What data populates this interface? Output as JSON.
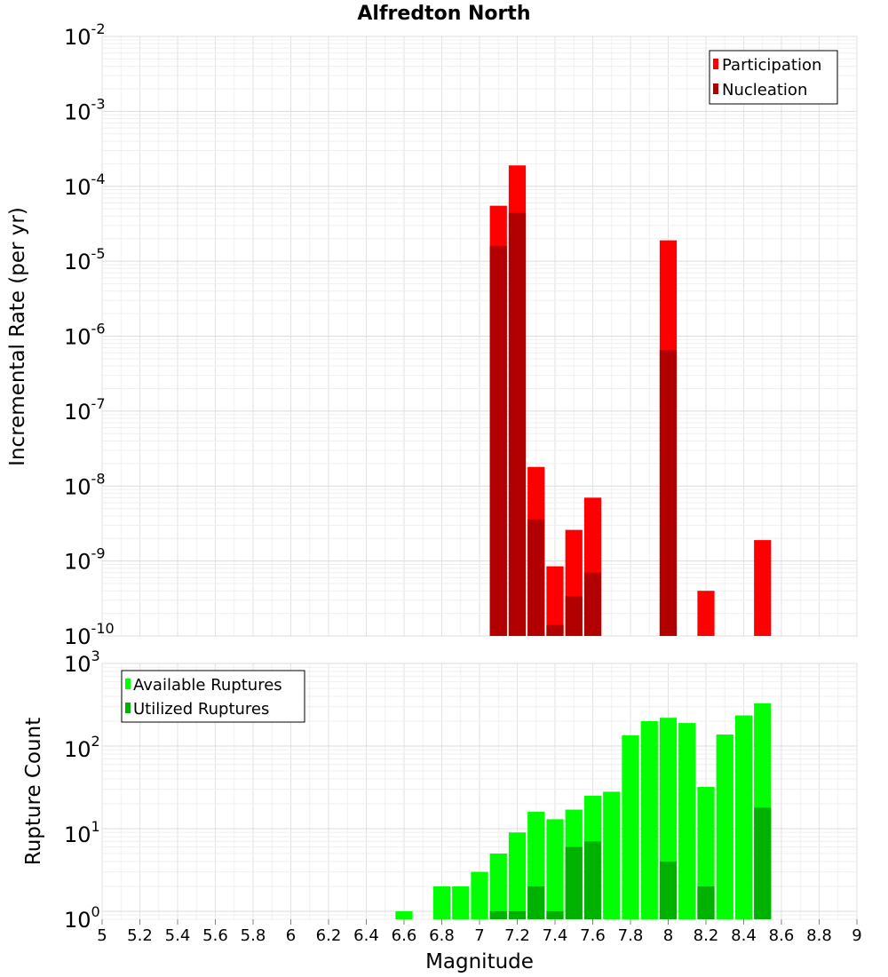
{
  "title": "Alfredton North",
  "xlabel": "Magnitude",
  "chart_data": [
    {
      "type": "bar",
      "ylabel": "Incremental Rate (per yr)",
      "yscale": "log",
      "ylim": [
        1e-10,
        0.01
      ],
      "xlim": [
        5,
        9
      ],
      "legend_position": "top-right",
      "bin_width": 0.1,
      "x": [
        7.1,
        7.2,
        7.3,
        7.4,
        7.5,
        7.6,
        8.0,
        8.2,
        8.5
      ],
      "series": [
        {
          "name": "Participation",
          "color": "#ff0000",
          "values": [
            5.5e-05,
            0.00019,
            1.8e-08,
            8.5e-10,
            2.6e-09,
            7e-09,
            1.9e-05,
            4e-10,
            1.9e-09
          ]
        },
        {
          "name": "Nucleation",
          "color": "#b20000",
          "values": [
            1.6e-05,
            4.4e-05,
            3.6e-09,
            1.4e-10,
            3.4e-10,
            7e-10,
            6.5e-07,
            null,
            null
          ]
        }
      ]
    },
    {
      "type": "bar",
      "ylabel": "Rupture Count",
      "yscale": "log",
      "ylim": [
        0.8,
        1000
      ],
      "xlim": [
        5,
        9
      ],
      "legend_position": "top-left",
      "bin_width": 0.1,
      "x": [
        6.6,
        6.8,
        6.9,
        7.0,
        7.1,
        7.2,
        7.3,
        7.4,
        7.5,
        7.6,
        7.7,
        7.8,
        7.9,
        8.0,
        8.1,
        8.2,
        8.3,
        8.4,
        8.5
      ],
      "series": [
        {
          "name": "Available Ruptures",
          "color": "#00ff00",
          "values": [
            1,
            2,
            2,
            3,
            5,
            9,
            16,
            13,
            17,
            25,
            28,
            135,
            200,
            220,
            190,
            32,
            138,
            235,
            330
          ]
        },
        {
          "name": "Utilized Ruptures",
          "color": "#00b200",
          "values": [
            null,
            null,
            null,
            null,
            1,
            1,
            2,
            1,
            6,
            7,
            null,
            null,
            null,
            4,
            null,
            2,
            null,
            null,
            18
          ]
        }
      ]
    }
  ],
  "x_ticks": [
    "5",
    "5.2",
    "5.4",
    "5.6",
    "5.8",
    "6",
    "6.2",
    "6.4",
    "6.6",
    "6.8",
    "7",
    "7.2",
    "7.4",
    "7.6",
    "7.8",
    "8",
    "8.2",
    "8.4",
    "8.6",
    "8.8",
    "9"
  ],
  "top_y_ticks": [
    {
      "base": "10",
      "exp": "-2"
    },
    {
      "base": "10",
      "exp": "-3"
    },
    {
      "base": "10",
      "exp": "-4"
    },
    {
      "base": "10",
      "exp": "-5"
    },
    {
      "base": "10",
      "exp": "-6"
    },
    {
      "base": "10",
      "exp": "-7"
    },
    {
      "base": "10",
      "exp": "-8"
    },
    {
      "base": "10",
      "exp": "-9"
    },
    {
      "base": "10",
      "exp": "-10"
    }
  ],
  "bottom_y_ticks": [
    {
      "base": "10",
      "exp": "3"
    },
    {
      "base": "10",
      "exp": "2"
    },
    {
      "base": "10",
      "exp": "1"
    },
    {
      "base": "10",
      "exp": "0"
    }
  ]
}
